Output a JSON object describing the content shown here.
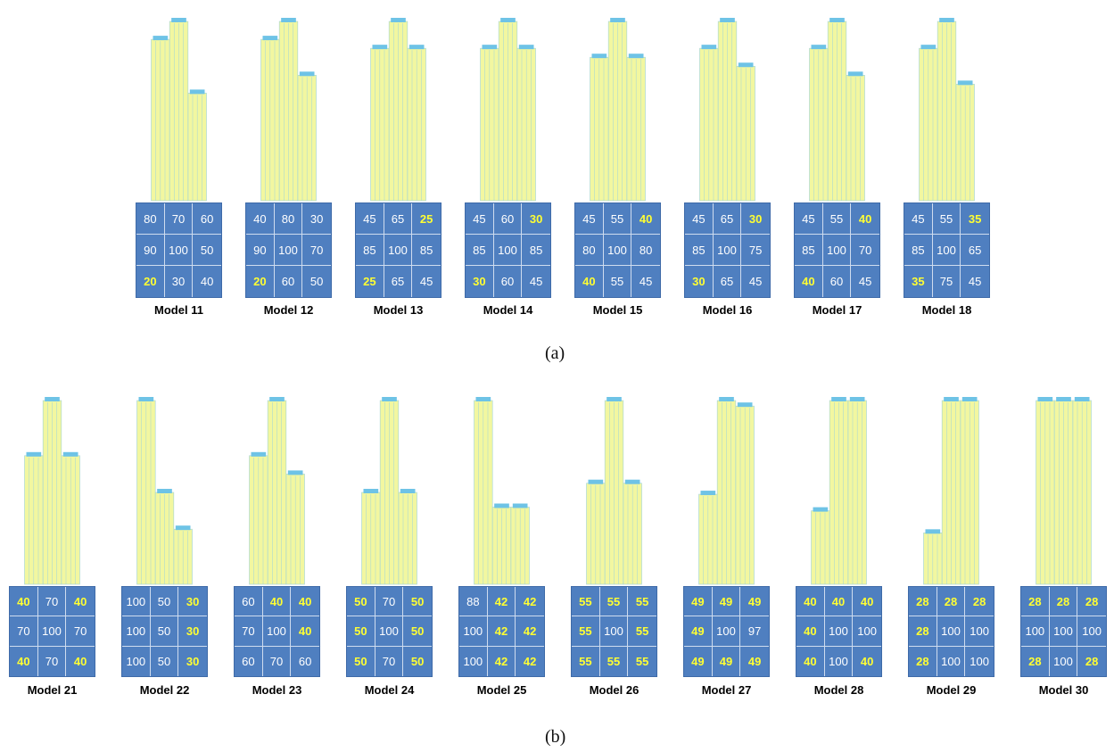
{
  "panels": [
    {
      "caption": "(a)",
      "models": [
        {
          "label": "Model 11",
          "cells": [
            "80",
            "70",
            "60",
            "90",
            "100",
            "50",
            "20",
            "30",
            "40"
          ],
          "highlight": [
            6
          ]
        },
        {
          "label": "Model 12",
          "cells": [
            "40",
            "80",
            "30",
            "90",
            "100",
            "70",
            "20",
            "60",
            "50"
          ],
          "highlight": [
            6
          ]
        },
        {
          "label": "Model 13",
          "cells": [
            "45",
            "65",
            "25",
            "85",
            "100",
            "85",
            "25",
            "65",
            "45"
          ],
          "highlight": [
            2,
            6
          ]
        },
        {
          "label": "Model 14",
          "cells": [
            "45",
            "60",
            "30",
            "85",
            "100",
            "85",
            "30",
            "60",
            "45"
          ],
          "highlight": [
            2,
            6
          ]
        },
        {
          "label": "Model 15",
          "cells": [
            "45",
            "55",
            "40",
            "80",
            "100",
            "80",
            "40",
            "55",
            "45"
          ],
          "highlight": [
            2,
            6
          ]
        },
        {
          "label": "Model 16",
          "cells": [
            "45",
            "65",
            "30",
            "85",
            "100",
            "75",
            "30",
            "65",
            "45"
          ],
          "highlight": [
            2,
            6
          ]
        },
        {
          "label": "Model 17",
          "cells": [
            "45",
            "55",
            "40",
            "85",
            "100",
            "70",
            "40",
            "60",
            "45"
          ],
          "highlight": [
            2,
            6
          ]
        },
        {
          "label": "Model 18",
          "cells": [
            "45",
            "55",
            "35",
            "85",
            "100",
            "65",
            "35",
            "75",
            "45"
          ],
          "highlight": [
            2,
            6
          ]
        }
      ]
    },
    {
      "caption": "(b)",
      "models": [
        {
          "label": "Model 21",
          "cells": [
            "40",
            "70",
            "40",
            "70",
            "100",
            "70",
            "40",
            "70",
            "40"
          ],
          "highlight": [
            0,
            2,
            6,
            8
          ]
        },
        {
          "label": "Model 22",
          "cells": [
            "100",
            "50",
            "30",
            "100",
            "50",
            "30",
            "100",
            "50",
            "30"
          ],
          "highlight": [
            2,
            5,
            8
          ]
        },
        {
          "label": "Model 23",
          "cells": [
            "60",
            "40",
            "40",
            "70",
            "100",
            "40",
            "60",
            "70",
            "60"
          ],
          "highlight": [
            1,
            2,
            5
          ]
        },
        {
          "label": "Model 24",
          "cells": [
            "50",
            "70",
            "50",
            "50",
            "100",
            "50",
            "50",
            "70",
            "50"
          ],
          "highlight": [
            0,
            2,
            3,
            5,
            6,
            8
          ]
        },
        {
          "label": "Model 25",
          "cells": [
            "88",
            "42",
            "42",
            "100",
            "42",
            "42",
            "100",
            "42",
            "42"
          ],
          "highlight": [
            1,
            2,
            4,
            5,
            7,
            8
          ]
        },
        {
          "label": "Model 26",
          "cells": [
            "55",
            "55",
            "55",
            "55",
            "100",
            "55",
            "55",
            "55",
            "55"
          ],
          "highlight": [
            0,
            1,
            2,
            3,
            5,
            6,
            7,
            8
          ]
        },
        {
          "label": "Model 27",
          "cells": [
            "49",
            "49",
            "49",
            "49",
            "100",
            "97",
            "49",
            "49",
            "49"
          ],
          "highlight": [
            0,
            1,
            2,
            3,
            6,
            7,
            8
          ]
        },
        {
          "label": "Model 28",
          "cells": [
            "40",
            "40",
            "40",
            "40",
            "100",
            "100",
            "40",
            "100",
            "40"
          ],
          "highlight": [
            0,
            1,
            2,
            3,
            6,
            8
          ]
        },
        {
          "label": "Model 29",
          "cells": [
            "28",
            "28",
            "28",
            "28",
            "100",
            "100",
            "28",
            "100",
            "100"
          ],
          "highlight": [
            0,
            1,
            2,
            3,
            6
          ]
        },
        {
          "label": "Model 30",
          "cells": [
            "28",
            "28",
            "28",
            "100",
            "100",
            "100",
            "28",
            "100",
            "28"
          ],
          "highlight": [
            0,
            1,
            2,
            6,
            8
          ]
        }
      ]
    }
  ],
  "colors": {
    "grid_bg": "#4f7fc0",
    "cell_text": "#ffffff",
    "highlight_text": "#ffff33",
    "tower_face": "#f2f7a0",
    "tower_line": "#9fd3d8",
    "tower_top": "#6ec3e6"
  }
}
